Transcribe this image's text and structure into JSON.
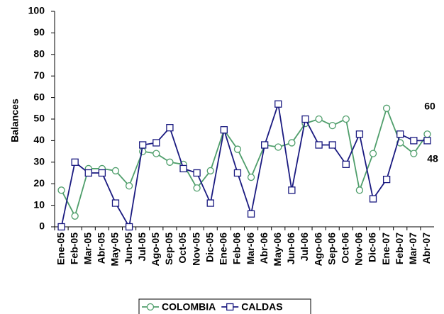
{
  "chart_data": {
    "type": "line",
    "y_label": "Balances",
    "categories": [
      "Ene-05",
      "Feb-05",
      "Mar-05",
      "Abr-05",
      "May-05",
      "Jun-05",
      "Jul-05",
      "Ago-05",
      "Sep-05",
      "Oct-05",
      "Nov-05",
      "Dic-05",
      "Ene-06",
      "Feb-06",
      "Mar-06",
      "Abr-06",
      "May-06",
      "Jun-06",
      "Jul-06",
      "Ago-06",
      "Sep-06",
      "Oct-06",
      "Nov-06",
      "Dic-06",
      "Ene-07",
      "Feb-07",
      "Mar-07",
      "Abr-07"
    ],
    "series": [
      {
        "name": "COLOMBIA",
        "color": "#4f9e6b",
        "marker": "circle",
        "values": [
          17,
          5,
          27,
          27,
          26,
          19,
          35,
          34,
          30,
          29,
          18,
          26,
          45,
          36,
          23,
          38,
          37,
          39,
          48,
          50,
          47,
          50,
          17,
          34,
          55,
          39,
          34,
          43
        ]
      },
      {
        "name": "CALDAS",
        "color": "#1a1a80",
        "marker": "square",
        "values": [
          0,
          30,
          25,
          25,
          11,
          0,
          38,
          39,
          46,
          27,
          25,
          11,
          45,
          25,
          6,
          38,
          57,
          17,
          50,
          38,
          38,
          29,
          43,
          13,
          22,
          43,
          40,
          40
        ]
      }
    ],
    "annotations": [
      "60",
      "48"
    ],
    "ylim": [
      0,
      100
    ],
    "yticks": [
      0,
      10,
      20,
      30,
      40,
      50,
      60,
      70,
      80,
      90,
      100
    ],
    "legend": "bottom"
  }
}
